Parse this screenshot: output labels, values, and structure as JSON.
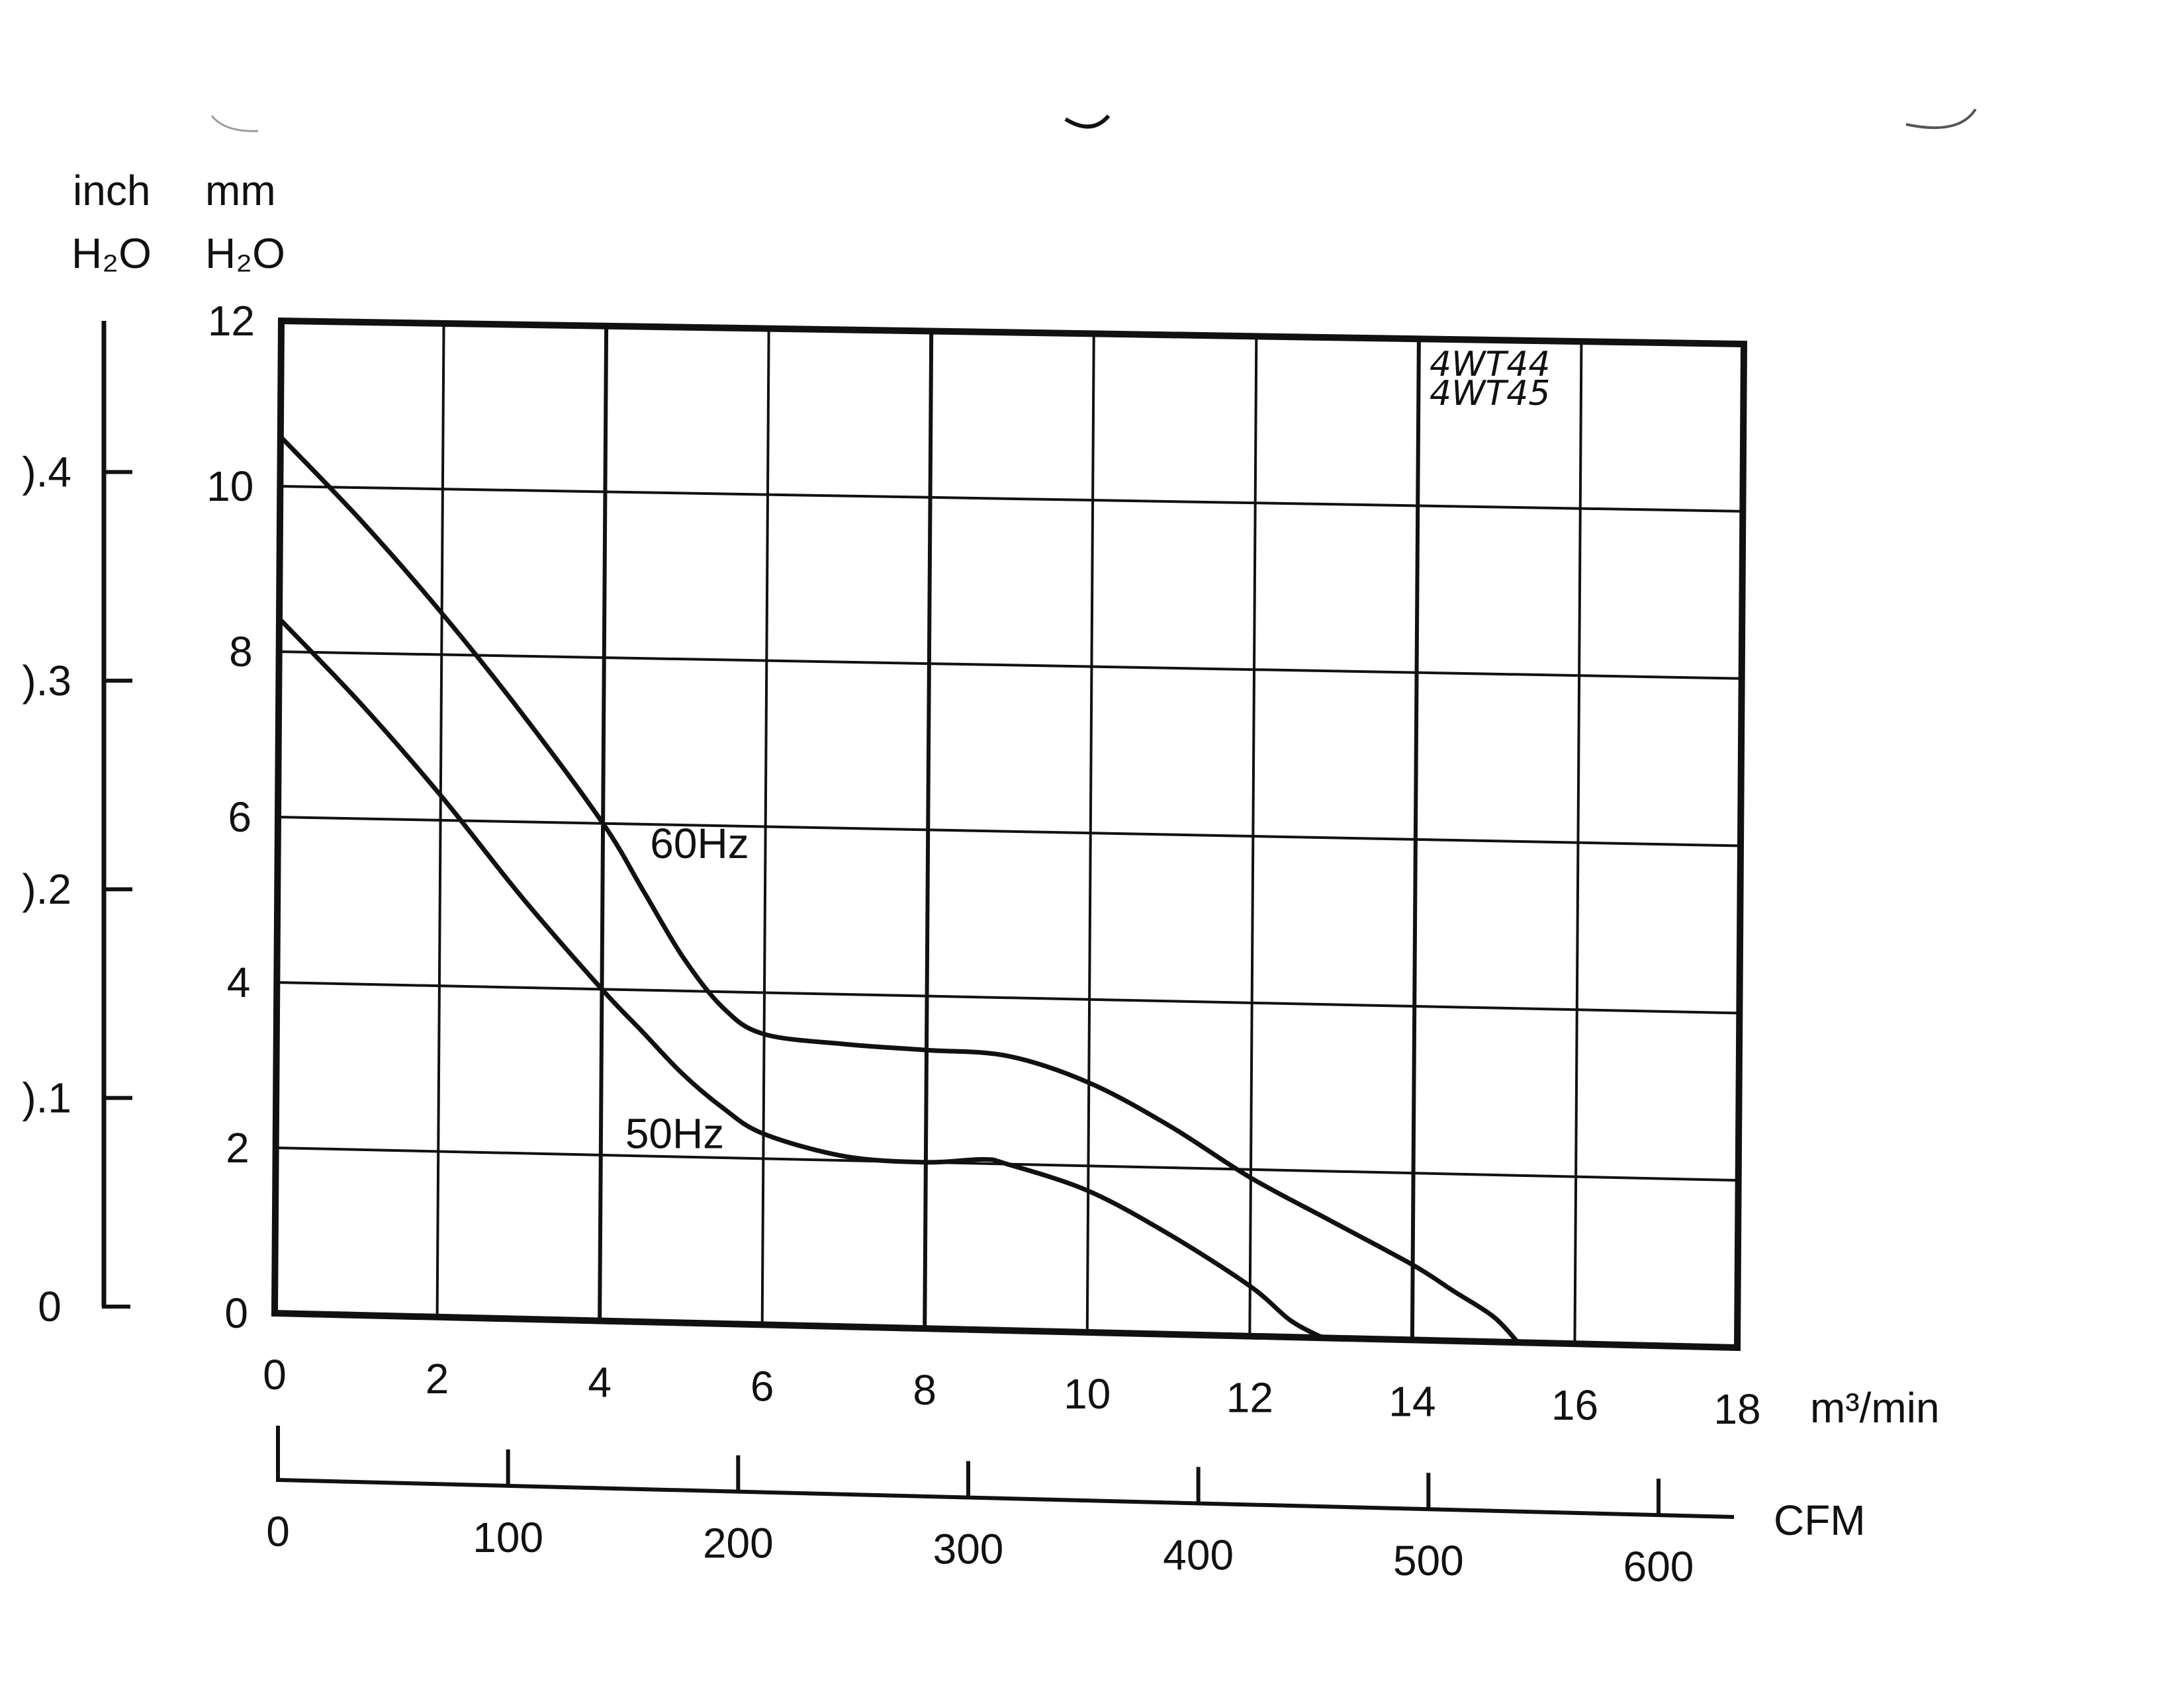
{
  "chart_data": {
    "type": "line",
    "y_units": {
      "inch": "inch",
      "inch_h2o": "H₂O",
      "mm": "mm",
      "mm_h2o": "H₂O"
    },
    "x_unit": "m³/min",
    "cfm_unit": "CFM",
    "annotation": [
      "4WT44",
      "4WT45"
    ],
    "xlim": [
      0,
      18
    ],
    "ylim": [
      0,
      12
    ],
    "grid": true,
    "x_ticks": [
      0,
      2,
      4,
      6,
      8,
      10,
      12,
      14,
      16,
      18
    ],
    "y_ticks": [
      0,
      2,
      4,
      6,
      8,
      10,
      12
    ],
    "x_tick_labels": [
      "0",
      "2",
      "4",
      "6",
      "8",
      "10",
      "12",
      "14",
      "16",
      "18"
    ],
    "y_tick_labels": [
      "0",
      "2",
      "4",
      "6",
      "8",
      "10",
      "12"
    ],
    "inch_ticks": [
      0,
      0.1,
      0.2,
      0.3,
      0.4
    ],
    "inch_tick_labels": [
      "0",
      ").1",
      ").2",
      ").3",
      ").4"
    ],
    "cfm_ticks": [
      0,
      100,
      200,
      300,
      400,
      500,
      600
    ],
    "cfm_tick_labels": [
      "0",
      "100",
      "200",
      "300",
      "400",
      "500",
      "600"
    ],
    "series": [
      {
        "name": "60Hz",
        "x": [
          0,
          1,
          2,
          3,
          4,
          4.5,
          5,
          5.5,
          6,
          7,
          8,
          9,
          10,
          11,
          12,
          13,
          14,
          14.5,
          15,
          15.3
        ],
        "y": [
          10.6,
          9.6,
          8.5,
          7.3,
          6.0,
          5.2,
          4.4,
          3.8,
          3.5,
          3.4,
          3.35,
          3.3,
          3.0,
          2.5,
          1.9,
          1.4,
          0.9,
          0.6,
          0.3,
          0
        ]
      },
      {
        "name": "50Hz",
        "x": [
          0,
          1,
          2,
          3,
          4,
          4.5,
          5,
          5.5,
          6,
          7,
          8,
          8.7,
          9,
          10,
          11,
          12,
          12.5,
          12.9
        ],
        "y": [
          8.4,
          7.4,
          6.3,
          5.1,
          4.0,
          3.5,
          3.0,
          2.6,
          2.3,
          2.05,
          2.0,
          2.05,
          2.0,
          1.7,
          1.2,
          0.6,
          0.2,
          0
        ]
      }
    ]
  }
}
